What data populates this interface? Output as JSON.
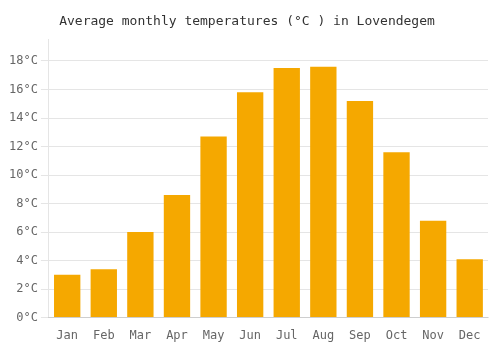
{
  "chart_data": {
    "type": "bar",
    "title": "Average monthly temperatures (°C ) in Lovendegem",
    "categories": [
      "Jan",
      "Feb",
      "Mar",
      "Apr",
      "May",
      "Jun",
      "Jul",
      "Aug",
      "Sep",
      "Oct",
      "Nov",
      "Dec"
    ],
    "values": [
      3.0,
      3.4,
      6.0,
      8.6,
      12.7,
      15.8,
      17.5,
      17.6,
      15.2,
      11.6,
      6.8,
      4.1
    ],
    "color": "#F5A800",
    "ylim": [
      0,
      19.5
    ],
    "yticks": [
      {
        "value": 0,
        "label": "0°C"
      },
      {
        "value": 2,
        "label": "2°C"
      },
      {
        "value": 4,
        "label": "4°C"
      },
      {
        "value": 6,
        "label": "6°C"
      },
      {
        "value": 8,
        "label": "8°C"
      },
      {
        "value": 10,
        "label": "10°C"
      },
      {
        "value": 12,
        "label": "12°C"
      },
      {
        "value": 14,
        "label": "14°C"
      },
      {
        "value": 16,
        "label": "16°C"
      },
      {
        "value": 18,
        "label": "18°C"
      }
    ],
    "grid": true
  }
}
